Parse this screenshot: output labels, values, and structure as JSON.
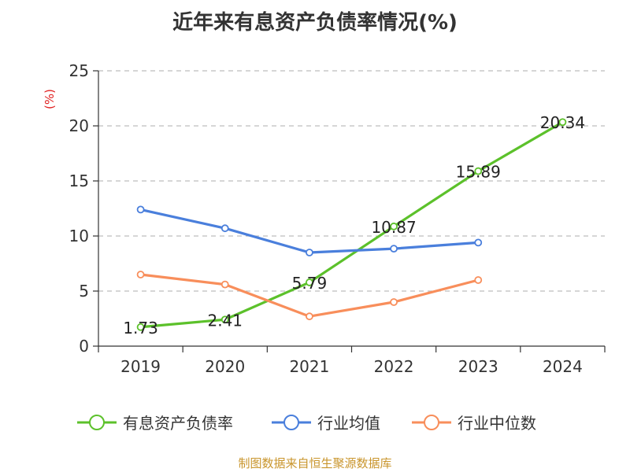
{
  "colors": {
    "green": "#5cc12b",
    "blue": "#4a7fdc",
    "orange": "#f88e5b",
    "grid": "#bdbdbd",
    "axis": "#333333",
    "unit": "#e02020",
    "source": "#c9952c"
  },
  "source_note": "制图数据来自恒生聚源数据库",
  "chart_data": {
    "type": "line",
    "title": "近年来有息资产负债率情况(%)",
    "ylabel": "(%)",
    "xlabel": "",
    "categories": [
      "2019",
      "2020",
      "2021",
      "2022",
      "2023",
      "2024"
    ],
    "ylim": [
      0,
      25
    ],
    "yticks": [
      0,
      5,
      10,
      15,
      20,
      25
    ],
    "grid": true,
    "legend_position": "bottom",
    "series": [
      {
        "name": "有息资产负债率",
        "color": "#5cc12b",
        "values": [
          1.73,
          2.41,
          5.79,
          10.87,
          15.89,
          20.34
        ],
        "labels": [
          "1.73",
          "2.41",
          "5.79",
          "10.87",
          "15.89",
          "20.34"
        ],
        "show_labels": true
      },
      {
        "name": "行业均值",
        "color": "#4a7fdc",
        "values": [
          12.4,
          10.7,
          8.5,
          8.85,
          9.4,
          null
        ],
        "show_labels": false
      },
      {
        "name": "行业中位数",
        "color": "#f88e5b",
        "values": [
          6.5,
          5.6,
          2.7,
          4.0,
          6.0,
          null
        ],
        "show_labels": false
      }
    ]
  }
}
